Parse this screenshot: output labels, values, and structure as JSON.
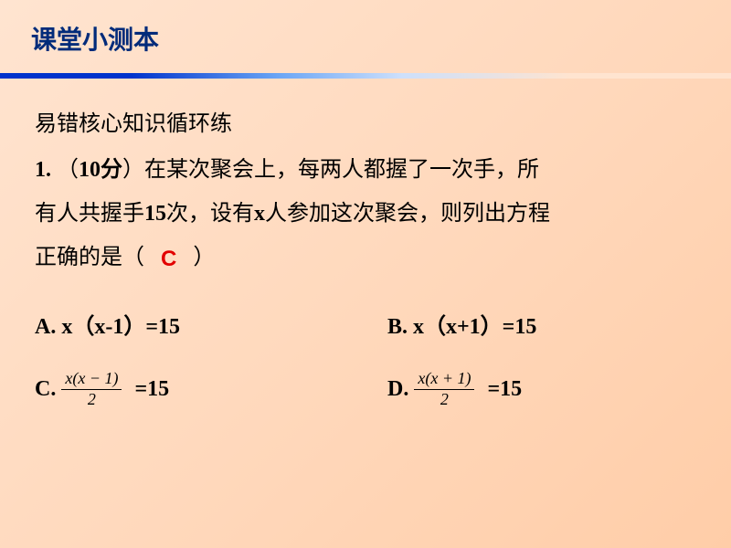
{
  "header": {
    "title": "课堂小测本"
  },
  "content": {
    "subtitle": "易错核心知识循环练",
    "q_num": "1.",
    "q_points_open": "（",
    "q_points": "10分",
    "q_points_close": "）",
    "q_text1": "在某次聚会上，每两人都握了一次手，所",
    "q_text2": "有人共握手",
    "q_count": "15",
    "q_text3": "次，设有",
    "q_var": "x",
    "q_text4": "人参加这次聚会，则列出方程",
    "q_text5": "正确的是（",
    "blank1": "   ",
    "answer": "C",
    "blank2": "   ",
    "q_text6": "）"
  },
  "options": {
    "A": {
      "label": "A. x（x-1）=15"
    },
    "B": {
      "label": "B. x（x+1）=15"
    },
    "C": {
      "prefix": "C. ",
      "num": "x(x − 1)",
      "den": "2",
      "suffix": "=15"
    },
    "D": {
      "prefix": "D. ",
      "num": "x(x + 1)",
      "den": "2",
      "suffix": "=15"
    }
  },
  "colors": {
    "title": "#002b7a",
    "answer": "#e20000",
    "bg_start": "#ffe4d0",
    "bg_end": "#ffcda8",
    "bar_blue": "#0033cc"
  }
}
